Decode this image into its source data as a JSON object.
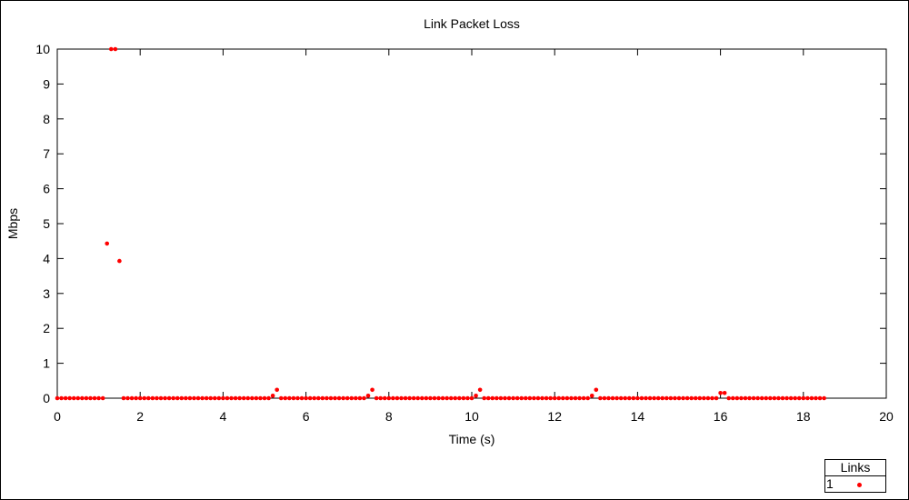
{
  "chart_data": {
    "type": "scatter",
    "title": "Link Packet Loss",
    "xlabel": "Time (s)",
    "ylabel": "Mbps",
    "xlim": [
      0,
      20
    ],
    "ylim": [
      0,
      10
    ],
    "x_ticks": [
      "0",
      "2",
      "4",
      "6",
      "8",
      "10",
      "12",
      "14",
      "16",
      "18",
      "20"
    ],
    "y_ticks": [
      "0",
      "1",
      "2",
      "3",
      "4",
      "5",
      "6",
      "7",
      "8",
      "9",
      "10"
    ],
    "grid": false,
    "legend": {
      "title": "Links",
      "placement": "bottom-right",
      "entries": [
        "1"
      ]
    },
    "series": [
      {
        "name": "1",
        "color": "#ff0000",
        "points": [
          [
            0.0,
            0
          ],
          [
            0.1,
            0
          ],
          [
            0.2,
            0
          ],
          [
            0.3,
            0
          ],
          [
            0.4,
            0
          ],
          [
            0.5,
            0
          ],
          [
            0.6,
            0
          ],
          [
            0.7,
            0
          ],
          [
            0.8,
            0
          ],
          [
            0.9,
            0
          ],
          [
            1.0,
            0
          ],
          [
            1.1,
            0
          ],
          [
            1.2,
            4.43
          ],
          [
            1.3,
            10
          ],
          [
            1.4,
            10
          ],
          [
            1.5,
            3.93
          ],
          [
            1.6,
            0
          ],
          [
            1.7,
            0
          ],
          [
            1.8,
            0
          ],
          [
            1.9,
            0
          ],
          [
            2.0,
            0
          ],
          [
            2.1,
            0
          ],
          [
            2.2,
            0
          ],
          [
            2.3,
            0
          ],
          [
            2.4,
            0
          ],
          [
            2.5,
            0
          ],
          [
            2.6,
            0
          ],
          [
            2.7,
            0
          ],
          [
            2.8,
            0
          ],
          [
            2.9,
            0
          ],
          [
            3.0,
            0
          ],
          [
            3.1,
            0
          ],
          [
            3.2,
            0
          ],
          [
            3.3,
            0
          ],
          [
            3.4,
            0
          ],
          [
            3.5,
            0
          ],
          [
            3.6,
            0
          ],
          [
            3.7,
            0
          ],
          [
            3.8,
            0
          ],
          [
            3.9,
            0
          ],
          [
            4.0,
            0
          ],
          [
            4.1,
            0
          ],
          [
            4.2,
            0
          ],
          [
            4.3,
            0
          ],
          [
            4.4,
            0
          ],
          [
            4.5,
            0
          ],
          [
            4.6,
            0
          ],
          [
            4.7,
            0
          ],
          [
            4.8,
            0
          ],
          [
            4.9,
            0
          ],
          [
            5.0,
            0
          ],
          [
            5.1,
            0
          ],
          [
            5.2,
            0.07
          ],
          [
            5.3,
            0.24
          ],
          [
            5.4,
            0
          ],
          [
            5.5,
            0
          ],
          [
            5.6,
            0
          ],
          [
            5.7,
            0
          ],
          [
            5.8,
            0
          ],
          [
            5.9,
            0
          ],
          [
            6.0,
            0
          ],
          [
            6.1,
            0
          ],
          [
            6.2,
            0
          ],
          [
            6.3,
            0
          ],
          [
            6.4,
            0
          ],
          [
            6.5,
            0
          ],
          [
            6.6,
            0
          ],
          [
            6.7,
            0
          ],
          [
            6.8,
            0
          ],
          [
            6.9,
            0
          ],
          [
            7.0,
            0
          ],
          [
            7.1,
            0
          ],
          [
            7.2,
            0
          ],
          [
            7.3,
            0
          ],
          [
            7.4,
            0
          ],
          [
            7.5,
            0.07
          ],
          [
            7.6,
            0.24
          ],
          [
            7.7,
            0
          ],
          [
            7.8,
            0
          ],
          [
            7.9,
            0
          ],
          [
            8.0,
            0
          ],
          [
            8.1,
            0
          ],
          [
            8.2,
            0
          ],
          [
            8.3,
            0
          ],
          [
            8.4,
            0
          ],
          [
            8.5,
            0
          ],
          [
            8.6,
            0
          ],
          [
            8.7,
            0
          ],
          [
            8.8,
            0
          ],
          [
            8.9,
            0
          ],
          [
            9.0,
            0
          ],
          [
            9.1,
            0
          ],
          [
            9.2,
            0
          ],
          [
            9.3,
            0
          ],
          [
            9.4,
            0
          ],
          [
            9.5,
            0
          ],
          [
            9.6,
            0
          ],
          [
            9.7,
            0
          ],
          [
            9.8,
            0
          ],
          [
            9.9,
            0
          ],
          [
            10.0,
            0
          ],
          [
            10.1,
            0.07
          ],
          [
            10.2,
            0.24
          ],
          [
            10.3,
            0
          ],
          [
            10.4,
            0
          ],
          [
            10.5,
            0
          ],
          [
            10.6,
            0
          ],
          [
            10.7,
            0
          ],
          [
            10.8,
            0
          ],
          [
            10.9,
            0
          ],
          [
            11.0,
            0
          ],
          [
            11.1,
            0
          ],
          [
            11.2,
            0
          ],
          [
            11.3,
            0
          ],
          [
            11.4,
            0
          ],
          [
            11.5,
            0
          ],
          [
            11.6,
            0
          ],
          [
            11.7,
            0
          ],
          [
            11.8,
            0
          ],
          [
            11.9,
            0
          ],
          [
            12.0,
            0
          ],
          [
            12.1,
            0
          ],
          [
            12.2,
            0
          ],
          [
            12.3,
            0
          ],
          [
            12.4,
            0
          ],
          [
            12.5,
            0
          ],
          [
            12.6,
            0
          ],
          [
            12.7,
            0
          ],
          [
            12.8,
            0
          ],
          [
            12.9,
            0.07
          ],
          [
            13.0,
            0.24
          ],
          [
            13.1,
            0
          ],
          [
            13.2,
            0
          ],
          [
            13.3,
            0
          ],
          [
            13.4,
            0
          ],
          [
            13.5,
            0
          ],
          [
            13.6,
            0
          ],
          [
            13.7,
            0
          ],
          [
            13.8,
            0
          ],
          [
            13.9,
            0
          ],
          [
            14.0,
            0
          ],
          [
            14.1,
            0
          ],
          [
            14.2,
            0
          ],
          [
            14.3,
            0
          ],
          [
            14.4,
            0
          ],
          [
            14.5,
            0
          ],
          [
            14.6,
            0
          ],
          [
            14.7,
            0
          ],
          [
            14.8,
            0
          ],
          [
            14.9,
            0
          ],
          [
            15.0,
            0
          ],
          [
            15.1,
            0
          ],
          [
            15.2,
            0
          ],
          [
            15.3,
            0
          ],
          [
            15.4,
            0
          ],
          [
            15.5,
            0
          ],
          [
            15.6,
            0
          ],
          [
            15.7,
            0
          ],
          [
            15.8,
            0
          ],
          [
            15.9,
            0
          ],
          [
            16.0,
            0.15
          ],
          [
            16.1,
            0.15
          ],
          [
            16.2,
            0
          ],
          [
            16.3,
            0
          ],
          [
            16.4,
            0
          ],
          [
            16.5,
            0
          ],
          [
            16.6,
            0
          ],
          [
            16.7,
            0
          ],
          [
            16.8,
            0
          ],
          [
            16.9,
            0
          ],
          [
            17.0,
            0
          ],
          [
            17.1,
            0
          ],
          [
            17.2,
            0
          ],
          [
            17.3,
            0
          ],
          [
            17.4,
            0
          ],
          [
            17.5,
            0
          ],
          [
            17.6,
            0
          ],
          [
            17.7,
            0
          ],
          [
            17.8,
            0
          ],
          [
            17.9,
            0
          ],
          [
            18.0,
            0
          ],
          [
            18.1,
            0
          ],
          [
            18.2,
            0
          ],
          [
            18.3,
            0
          ],
          [
            18.4,
            0
          ],
          [
            18.5,
            0
          ]
        ]
      }
    ]
  }
}
